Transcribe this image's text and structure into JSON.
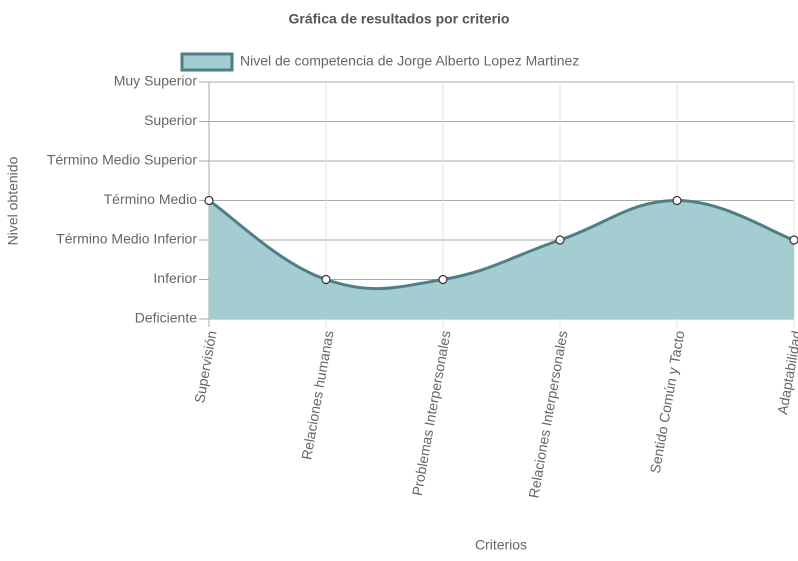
{
  "chart_data": {
    "type": "area",
    "title": "Gráfica de resultados por criterio",
    "x_label": "Criterios",
    "y_label": "Nivel obtenido",
    "categories": [
      "Supervisión",
      "Relaciones humanas",
      "Problemas Interpersonales",
      "Relaciones Interpersonales",
      "Sentido Común y Tacto",
      "Adaptabilidad"
    ],
    "series": [
      {
        "name": "Nivel de competencia de Jorge Alberto Lopez Martinez",
        "color": "#4e7f86",
        "fill_color": "#a3cdd0",
        "values": [
          3,
          1,
          1,
          2,
          3,
          2
        ]
      }
    ],
    "ylim": [
      0,
      6
    ],
    "yticks": [
      {
        "value": 0,
        "label": "Deficiente"
      },
      {
        "value": 1,
        "label": "Inferior"
      },
      {
        "value": 2,
        "label": "Término Medio Inferior"
      },
      {
        "value": 3,
        "label": "Término Medio"
      },
      {
        "value": 4,
        "label": "Término Medio Superior"
      },
      {
        "value": 5,
        "label": "Superior"
      },
      {
        "value": 6,
        "label": "Muy Superior"
      }
    ],
    "grid": true,
    "legend": "top"
  }
}
